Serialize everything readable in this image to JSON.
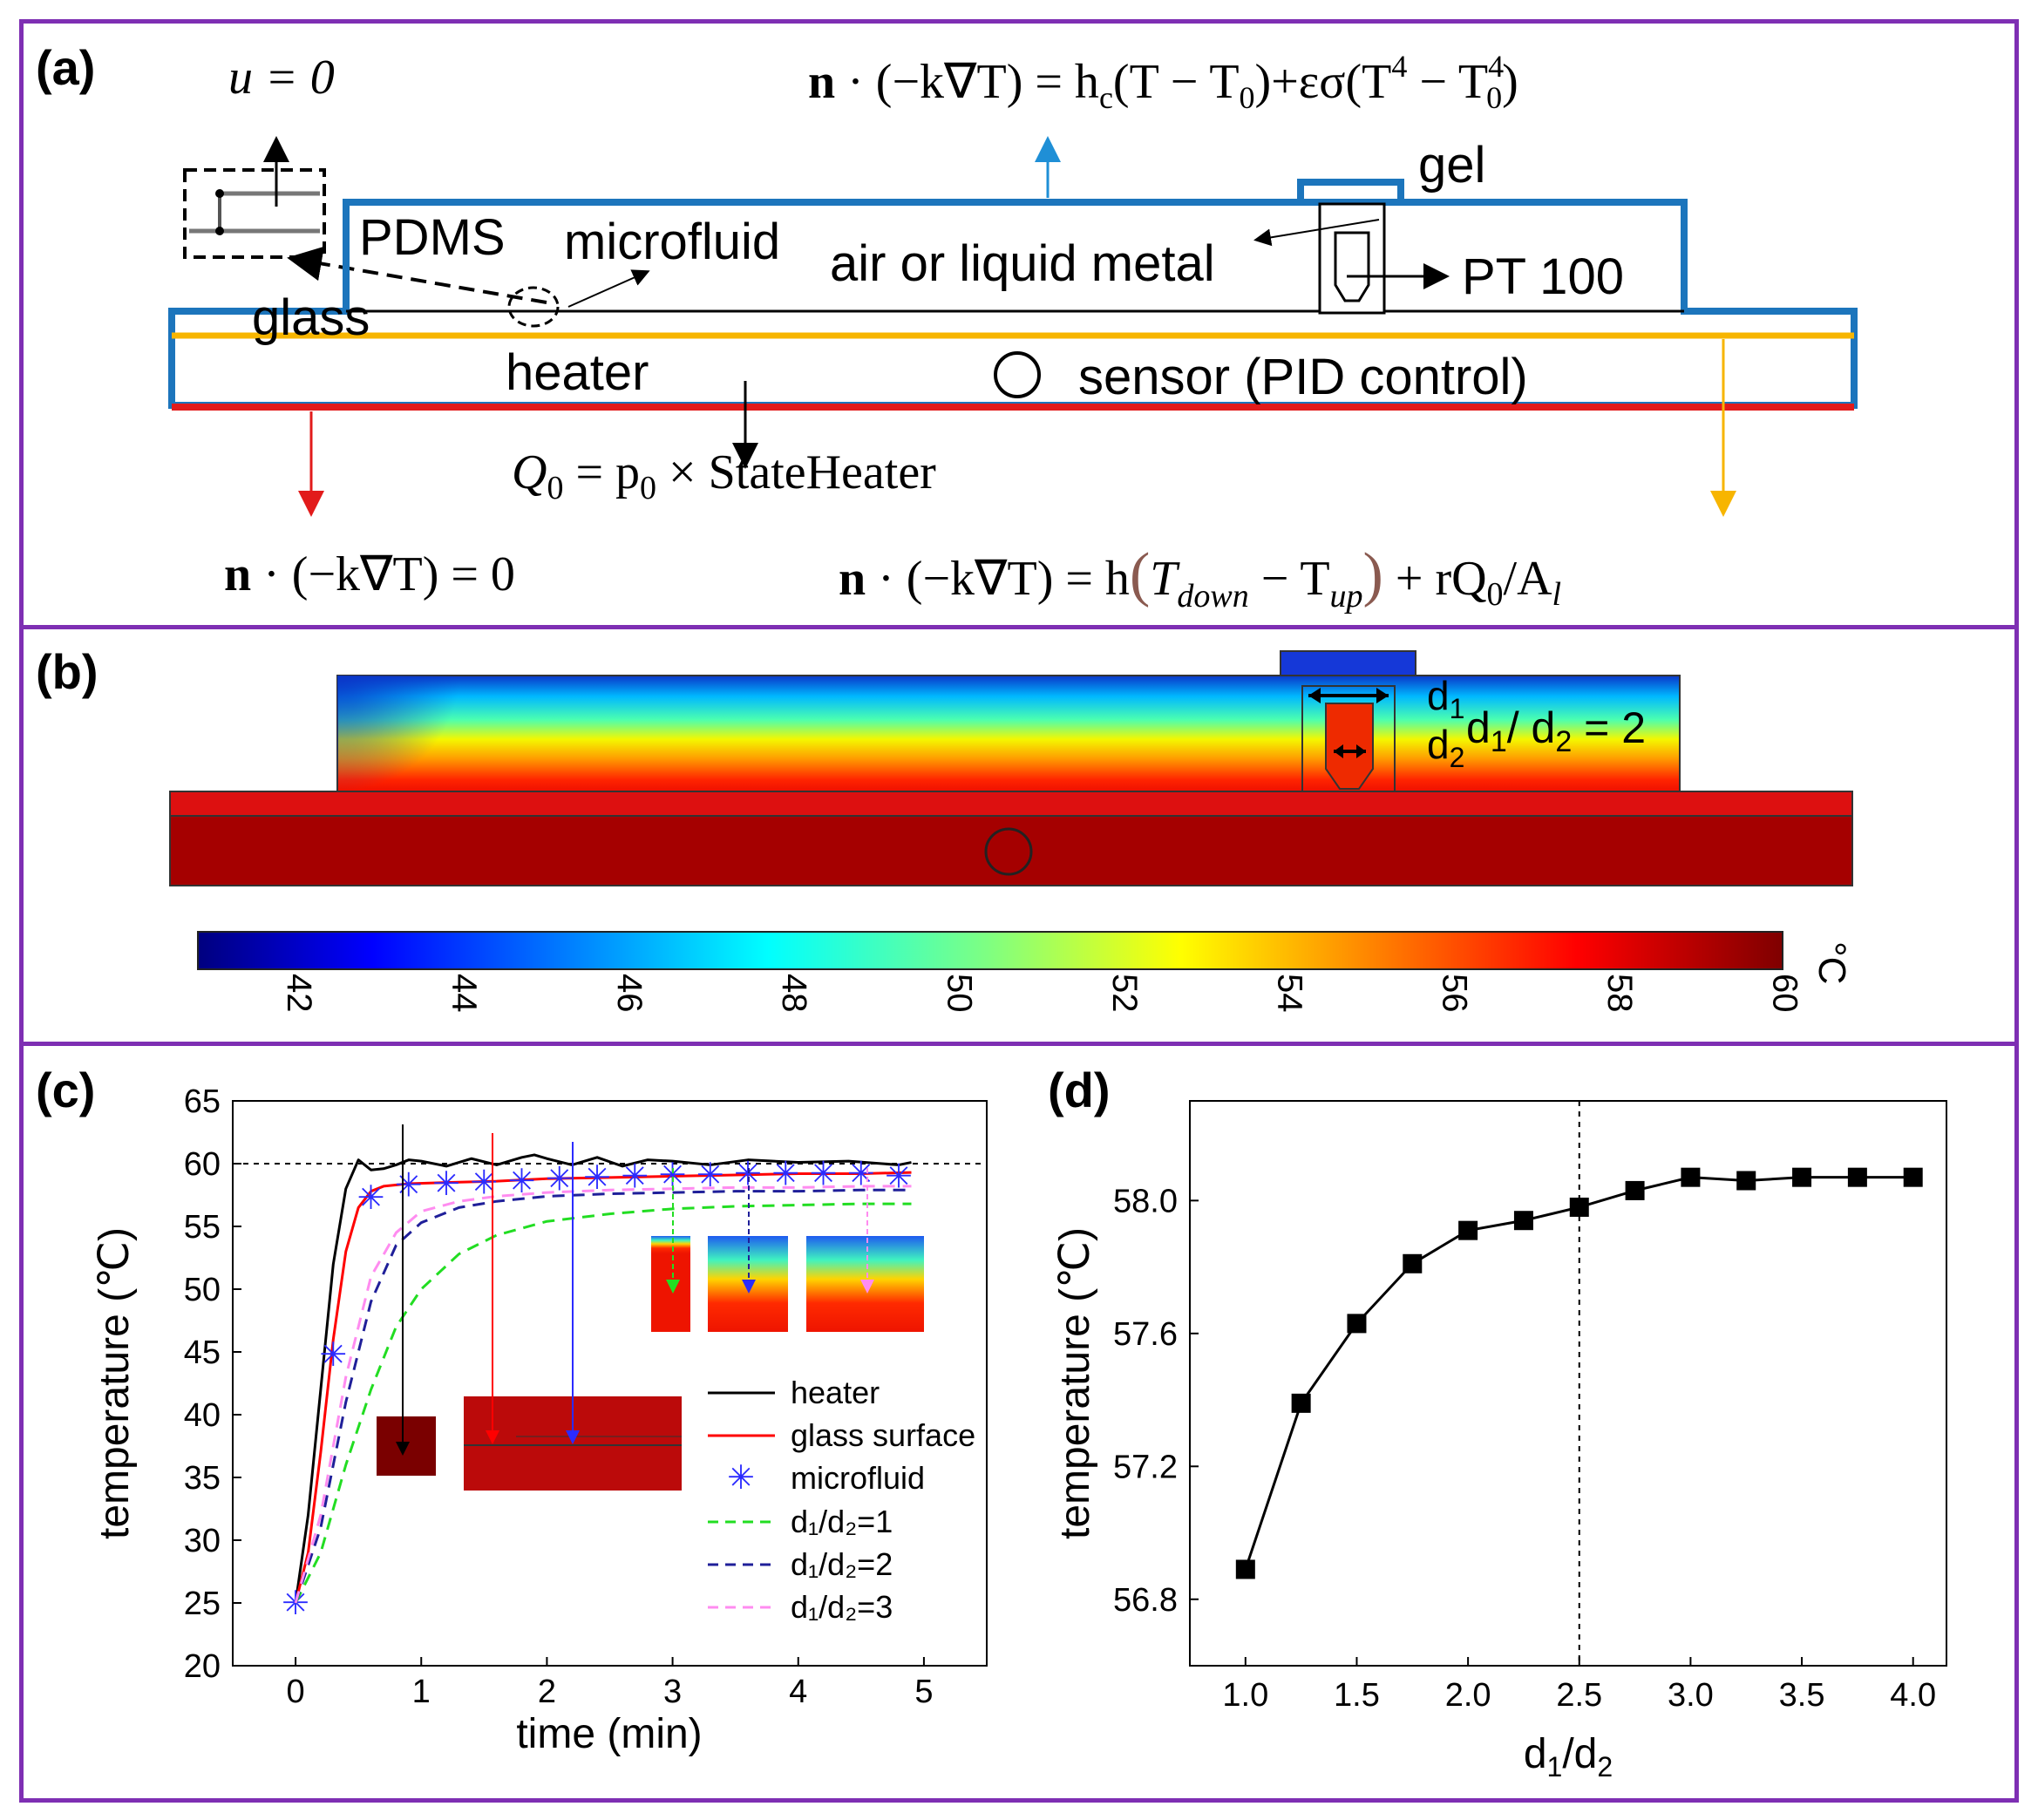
{
  "panel_a": {
    "label": "(a)",
    "eq_top_left": "u = 0",
    "eq_top": "n · (−k∇T) = h_c(T − T_0)+εσ(T^4 − T_0^4)",
    "eq_top_parts": {
      "lhs": "n",
      "mid": " · (−k∇T) = h",
      "c": "c",
      "rest": "(T − T",
      "zero": "0",
      "eps": ")+εσ(T",
      "four": "4",
      "minus": " − T",
      "sup4": "4",
      "sub0": "0",
      "close": ")"
    },
    "gel": "gel",
    "pdms": "PDMS",
    "microfluid": "microfluid",
    "air_metal": "air or liquid metal",
    "pt100": "PT 100",
    "glass": "glass",
    "heater": "heater",
    "sensor": "sensor (PID control)",
    "q0_eq": "Q₀ = p₀ × StateHeater",
    "q0_parts": {
      "q": "Q",
      "sub": "0",
      "eq": " = p",
      "psub": "0",
      "times": " × StateHeater"
    },
    "bottom_left_eq": {
      "n": "n",
      "rest": " · (−k∇T) = 0"
    },
    "bottom_right_eq": {
      "n": "n",
      "a": " · (−k∇T) = h",
      "lp": "(",
      "t1": "T",
      "down": "down",
      "m": " − T",
      "up": "up",
      "rp": ")",
      "tail": " + rQ",
      "qsub": "0",
      "slash": "/A",
      "l": "l"
    },
    "colors": {
      "boundary_blue": "#1c75bc",
      "heater_red": "#e21b1b",
      "interface_yellow": "#f7b500",
      "arrow_blue": "#1f8fd6"
    }
  },
  "panel_b": {
    "label": "(b)",
    "d1": "d",
    "d1_sub": "1",
    "d2": "d",
    "d2_sub": "2",
    "ratio_text": {
      "d": "d",
      "s1": "1",
      "slash": "/ d",
      "s2": "2",
      "eq": " = 2"
    },
    "colorbar_unit": "°C",
    "colorbar_ticks": [
      "42",
      "44",
      "46",
      "48",
      "50",
      "52",
      "54",
      "56",
      "58",
      "60"
    ],
    "colorbar_range": [
      40.8,
      60.0
    ]
  },
  "panel_c": {
    "label": "(c)",
    "chart_data": {
      "type": "line",
      "xlabel": "time (min)",
      "ylabel": "temperature (℃)",
      "xlim": [
        -0.5,
        5.5
      ],
      "ylim": [
        20,
        65
      ],
      "xticks": [
        "0",
        "1",
        "2",
        "3",
        "4",
        "5"
      ],
      "yticks": [
        "20",
        "25",
        "30",
        "35",
        "40",
        "45",
        "50",
        "55",
        "60",
        "65"
      ],
      "reference_line": 60,
      "series": [
        {
          "name": "heater",
          "color": "#000000",
          "style": "solid",
          "x": [
            0,
            0.1,
            0.2,
            0.3,
            0.4,
            0.5,
            0.6,
            0.7,
            0.8,
            0.9,
            1.0,
            1.2,
            1.4,
            1.6,
            1.8,
            1.9,
            2.0,
            2.2,
            2.4,
            2.6,
            2.8,
            3.0,
            3.3,
            3.6,
            4.0,
            4.4,
            4.8,
            4.9
          ],
          "y": [
            25,
            32,
            42,
            52,
            58,
            60.3,
            59.5,
            59.6,
            59.9,
            60.3,
            60.2,
            59.8,
            60.4,
            59.9,
            60.5,
            60.7,
            60.4,
            59.9,
            60.5,
            59.8,
            60.3,
            60.2,
            59.9,
            60.3,
            60.1,
            60.2,
            59.9,
            60.1
          ]
        },
        {
          "name": "glass surface",
          "color": "#ff0000",
          "style": "solid",
          "x": [
            0,
            0.1,
            0.2,
            0.3,
            0.4,
            0.5,
            0.6,
            0.7,
            0.9,
            1.2,
            1.6,
            2.0,
            2.5,
            3.0,
            3.5,
            4.0,
            4.5,
            4.9
          ],
          "y": [
            25,
            29,
            37,
            46,
            53,
            56.5,
            57.8,
            58.2,
            58.4,
            58.5,
            58.6,
            58.8,
            58.9,
            59.0,
            59.1,
            59.2,
            59.2,
            59.3
          ]
        },
        {
          "name": "microfluid",
          "color": "#2b2bff",
          "style": "marker",
          "x": [
            0,
            0.3,
            0.6,
            0.9,
            1.2,
            1.5,
            1.8,
            2.1,
            2.4,
            2.7,
            3.0,
            3.3,
            3.6,
            3.9,
            4.2,
            4.5,
            4.8
          ],
          "y": [
            25,
            44.8,
            57.3,
            58.3,
            58.4,
            58.5,
            58.6,
            58.8,
            58.9,
            59.0,
            59.1,
            59.1,
            59.2,
            59.2,
            59.2,
            59.2,
            59.0
          ]
        },
        {
          "name": "d₁/d₂=1",
          "color": "#22dd22",
          "style": "dashed",
          "x": [
            0,
            0.2,
            0.4,
            0.6,
            0.8,
            1.0,
            1.3,
            1.6,
            2.0,
            2.5,
            3.0,
            3.5,
            4.0,
            4.5,
            4.9
          ],
          "y": [
            25,
            29,
            36,
            42,
            47,
            50,
            52.8,
            54.3,
            55.4,
            56.0,
            56.4,
            56.6,
            56.7,
            56.8,
            56.8
          ]
        },
        {
          "name": "d₁/d₂=2",
          "color": "#1f1f99",
          "style": "dashed",
          "x": [
            0,
            0.2,
            0.4,
            0.6,
            0.8,
            1.0,
            1.3,
            1.6,
            2.0,
            2.5,
            3.0,
            3.5,
            4.0,
            4.5,
            4.9
          ],
          "y": [
            25,
            31,
            41,
            49,
            53.5,
            55.3,
            56.5,
            57.0,
            57.4,
            57.6,
            57.7,
            57.8,
            57.8,
            57.9,
            57.9
          ]
        },
        {
          "name": "d₁/d₂=3",
          "color": "#ff8cf0",
          "style": "dashed",
          "x": [
            0,
            0.2,
            0.4,
            0.6,
            0.8,
            1.0,
            1.3,
            1.6,
            2.0,
            2.5,
            3.0,
            3.5,
            4.0,
            4.5,
            4.9
          ],
          "y": [
            25,
            32,
            43,
            51,
            54.5,
            56.2,
            57.0,
            57.4,
            57.7,
            57.9,
            58.0,
            58.1,
            58.1,
            58.2,
            58.2
          ]
        }
      ]
    }
  },
  "panel_d": {
    "label": "(d)",
    "chart_data": {
      "type": "line",
      "xlabel": "d₁/d₂",
      "xlabel_parts": {
        "d": "d",
        "s1": "1",
        "slash": "/d",
        "s2": "2"
      },
      "ylabel": "temperature (℃)",
      "xlim": [
        0.75,
        4.15
      ],
      "ylim": [
        56.6,
        58.3
      ],
      "xticks": [
        "1.0",
        "1.5",
        "2.0",
        "2.5",
        "3.0",
        "3.5",
        "4.0"
      ],
      "yticks": [
        "56.8",
        "57.2",
        "57.6",
        "58.0"
      ],
      "vline": 2.5,
      "x": [
        1.0,
        1.25,
        1.5,
        1.75,
        2.0,
        2.25,
        2.5,
        2.75,
        3.0,
        3.25,
        3.5,
        3.75,
        4.0
      ],
      "y": [
        56.89,
        57.39,
        57.63,
        57.81,
        57.91,
        57.94,
        57.98,
        58.03,
        58.07,
        58.06,
        58.07,
        58.07,
        58.07
      ]
    }
  }
}
